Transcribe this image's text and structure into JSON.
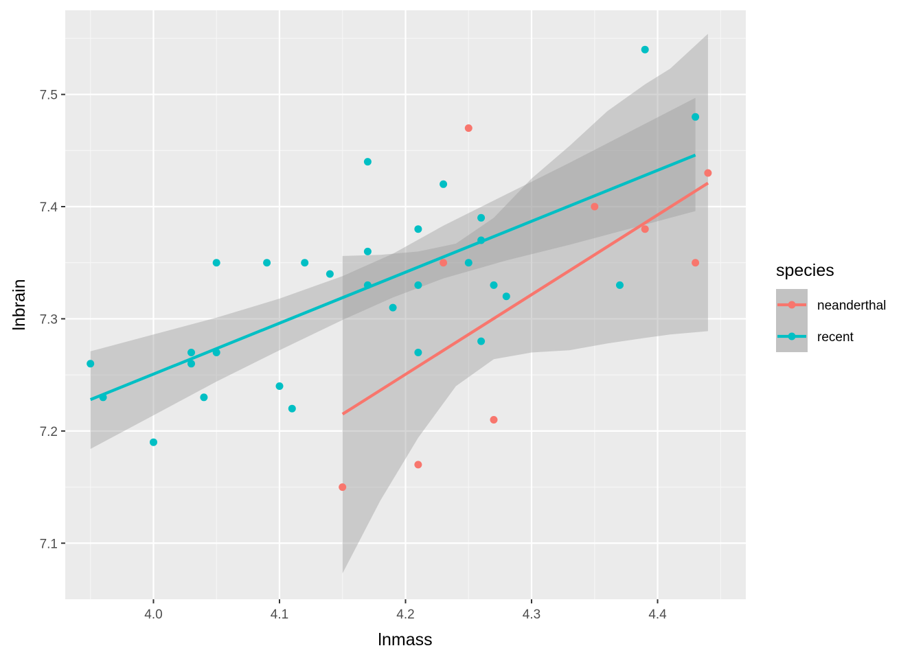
{
  "chart_data": {
    "type": "scatter",
    "xlabel": "lnmass",
    "ylabel": "lnbrain",
    "xlim": [
      3.93,
      4.47
    ],
    "ylim": [
      7.05,
      7.575
    ],
    "x_ticks": [
      4.0,
      4.1,
      4.2,
      4.3,
      4.4
    ],
    "x_tick_labels": [
      "4.0",
      "4.1",
      "4.2",
      "4.3",
      "4.4"
    ],
    "y_ticks": [
      7.1,
      7.2,
      7.3,
      7.4,
      7.5
    ],
    "y_tick_labels": [
      "7.1",
      "7.2",
      "7.3",
      "7.4",
      "7.5"
    ],
    "grid": true,
    "legend": {
      "title": "species",
      "position": "right"
    },
    "series": [
      {
        "name": "neanderthal",
        "color": "#F8766D",
        "points": [
          [
            4.15,
            7.15
          ],
          [
            4.21,
            7.17
          ],
          [
            4.23,
            7.35
          ],
          [
            4.25,
            7.47
          ],
          [
            4.27,
            7.21
          ],
          [
            4.35,
            7.4
          ],
          [
            4.39,
            7.38
          ],
          [
            4.43,
            7.35
          ],
          [
            4.44,
            7.43
          ]
        ],
        "fit": {
          "x": [
            4.15,
            4.44
          ],
          "y": [
            7.215,
            7.421
          ]
        },
        "ribbon": {
          "x": [
            4.15,
            4.18,
            4.21,
            4.24,
            4.27,
            4.3,
            4.33,
            4.36,
            4.39,
            4.41,
            4.44
          ],
          "lower": [
            7.073,
            7.138,
            7.194,
            7.24,
            7.264,
            7.27,
            7.272,
            7.278,
            7.283,
            7.286,
            7.289
          ],
          "upper": [
            7.356,
            7.357,
            7.36,
            7.367,
            7.39,
            7.425,
            7.454,
            7.485,
            7.509,
            7.523,
            7.554
          ]
        }
      },
      {
        "name": "recent",
        "color": "#00BFC4",
        "points": [
          [
            3.95,
            7.26
          ],
          [
            3.96,
            7.23
          ],
          [
            4.0,
            7.19
          ],
          [
            4.03,
            7.27
          ],
          [
            4.03,
            7.26
          ],
          [
            4.04,
            7.23
          ],
          [
            4.05,
            7.35
          ],
          [
            4.05,
            7.27
          ],
          [
            4.09,
            7.35
          ],
          [
            4.1,
            7.24
          ],
          [
            4.11,
            7.22
          ],
          [
            4.12,
            7.35
          ],
          [
            4.14,
            7.34
          ],
          [
            4.17,
            7.44
          ],
          [
            4.17,
            7.36
          ],
          [
            4.17,
            7.33
          ],
          [
            4.19,
            7.31
          ],
          [
            4.21,
            7.38
          ],
          [
            4.21,
            7.33
          ],
          [
            4.21,
            7.27
          ],
          [
            4.23,
            7.42
          ],
          [
            4.25,
            7.35
          ],
          [
            4.26,
            7.39
          ],
          [
            4.26,
            7.37
          ],
          [
            4.26,
            7.28
          ],
          [
            4.27,
            7.33
          ],
          [
            4.28,
            7.32
          ],
          [
            4.37,
            7.33
          ],
          [
            4.39,
            7.54
          ],
          [
            4.43,
            7.48
          ]
        ],
        "fit": {
          "x": [
            3.95,
            4.43
          ],
          "y": [
            7.228,
            7.446
          ]
        },
        "ribbon": {
          "x": [
            3.95,
            4.0,
            4.05,
            4.1,
            4.15,
            4.19,
            4.23,
            4.28,
            4.33,
            4.38,
            4.43
          ],
          "lower": [
            7.184,
            7.214,
            7.244,
            7.272,
            7.299,
            7.319,
            7.336,
            7.352,
            7.366,
            7.381,
            7.396
          ],
          "upper": [
            7.271,
            7.286,
            7.301,
            7.318,
            7.338,
            7.358,
            7.383,
            7.411,
            7.439,
            7.468,
            7.497
          ]
        }
      }
    ]
  }
}
